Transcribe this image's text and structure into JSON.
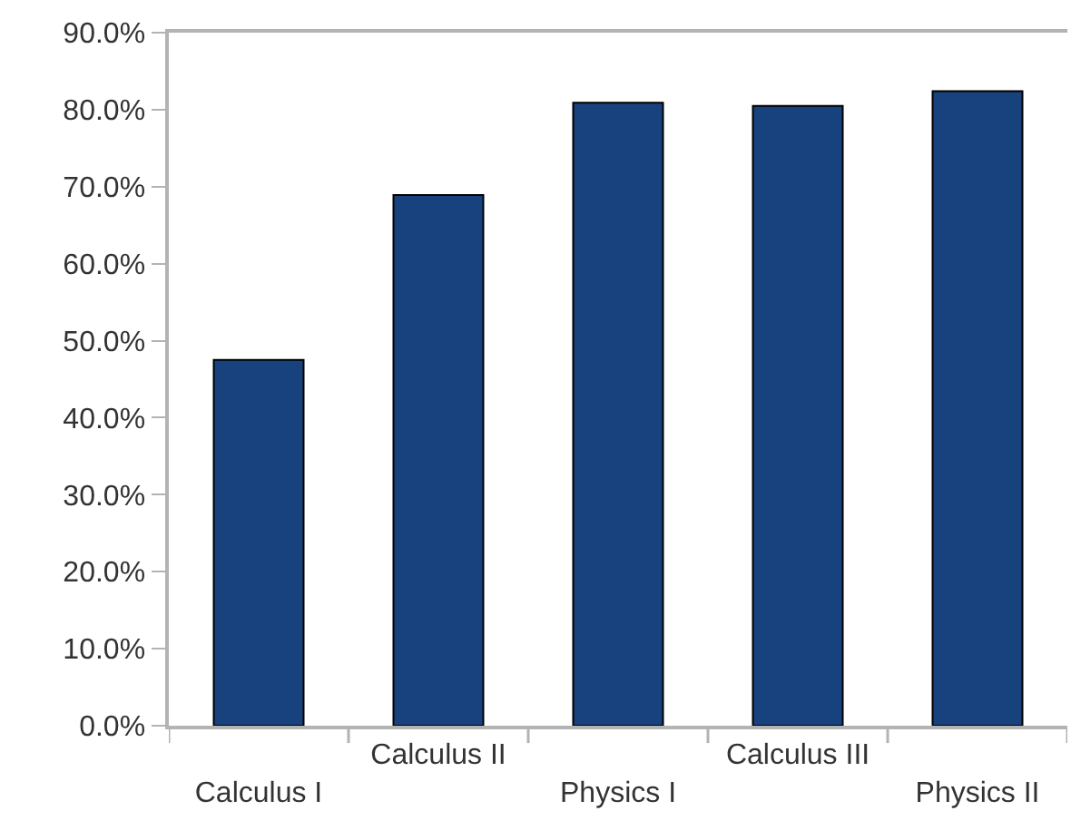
{
  "chart_data": {
    "type": "bar",
    "categories": [
      "Calculus I",
      "Calculus II",
      "Physics I",
      "Calculus III",
      "Physics II"
    ],
    "values": [
      47.5,
      68.9,
      80.9,
      80.5,
      82.4
    ],
    "color": "#17427d",
    "ylim": [
      0,
      90
    ],
    "yticks": [
      {
        "value": 0,
        "label": "0.0%"
      },
      {
        "value": 10,
        "label": "10.0%"
      },
      {
        "value": 20,
        "label": "20.0%"
      },
      {
        "value": 30,
        "label": "30.0%"
      },
      {
        "value": 40,
        "label": "40.0%"
      },
      {
        "value": 50,
        "label": "50.0%"
      },
      {
        "value": 60,
        "label": "60.0%"
      },
      {
        "value": 70,
        "label": "70.0%"
      },
      {
        "value": 80,
        "label": "80.0%"
      },
      {
        "value": 90,
        "label": "90.0%"
      }
    ],
    "grid": false,
    "legend": false
  }
}
